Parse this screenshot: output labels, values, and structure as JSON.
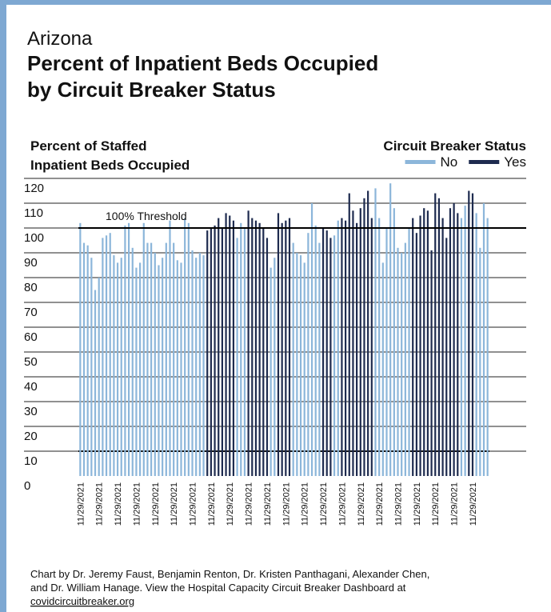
{
  "chart_data": {
    "type": "bar",
    "state": "Arizona",
    "title": [
      "Percent of Inpatient Beds Occupied",
      "by Circuit Breaker Status"
    ],
    "y_label": [
      "Percent of Staffed",
      "Inpatient Beds Occupied"
    ],
    "legend_title": "Circuit Breaker Status",
    "threshold": 100,
    "threshold_label": "100% Threshold",
    "ylim": [
      0,
      120
    ],
    "yticks": [
      0,
      10,
      20,
      30,
      40,
      50,
      60,
      70,
      80,
      90,
      100,
      110,
      120
    ],
    "grid": true,
    "categories": [
      "11/29/2021",
      null,
      null,
      null,
      null,
      "11/29/2021",
      null,
      null,
      null,
      null,
      "11/29/2021",
      null,
      null,
      null,
      null,
      "11/29/2021",
      null,
      null,
      null,
      null,
      "11/29/2021",
      null,
      null,
      null,
      null,
      "11/29/2021",
      null,
      null,
      null,
      null,
      "11/29/2021",
      null,
      null,
      null,
      null,
      "11/29/2021",
      null,
      null,
      null,
      null,
      "11/29/2021",
      null,
      null,
      null,
      null,
      "11/29/2021",
      null,
      null,
      null,
      null,
      "11/29/2021",
      null,
      null,
      null,
      null,
      "11/29/2021",
      null,
      null,
      null,
      null,
      "11/29/2021",
      null,
      null,
      null,
      null,
      "11/29/2021",
      null,
      null,
      null,
      null,
      "11/29/2021",
      null,
      null,
      null,
      null,
      "11/29/2021",
      null,
      null,
      null,
      null,
      "11/29/2021",
      null,
      null,
      null,
      null,
      "11/29/2021",
      null,
      null,
      null,
      null,
      "11/29/2021",
      null,
      null,
      null,
      null,
      "11/29/2021",
      null,
      null,
      null,
      null,
      "11/29/2021",
      null,
      null,
      null,
      null,
      "11/29/2021",
      null,
      null,
      null,
      null
    ],
    "series": [
      {
        "name": "No",
        "color": "#8cb6da",
        "values": [
          102,
          94,
          93,
          88,
          75,
          80,
          96,
          97,
          98,
          89,
          86,
          88,
          101,
          102,
          92,
          84,
          86,
          102,
          94,
          94,
          90,
          85,
          88,
          94,
          103,
          94,
          87,
          86,
          104,
          102,
          91,
          88,
          90,
          89,
          null,
          null,
          null,
          null,
          null,
          null,
          null,
          null,
          96,
          102,
          100,
          null,
          null,
          null,
          null,
          null,
          null,
          84,
          88,
          null,
          null,
          null,
          null,
          94,
          90,
          89,
          86,
          98,
          110,
          101,
          94,
          null,
          null,
          null,
          97,
          103,
          null,
          null,
          null,
          null,
          null,
          null,
          null,
          null,
          null,
          116,
          104,
          86,
          100,
          118,
          108,
          92,
          90,
          94,
          100,
          null,
          null,
          null,
          null,
          null,
          null,
          null,
          null,
          null,
          null,
          null,
          null,
          null,
          104,
          109,
          null,
          null,
          106,
          92,
          110,
          104
        ]
      },
      {
        "name": "Yes",
        "color": "#1e2b4f",
        "values": [
          null,
          null,
          null,
          null,
          null,
          null,
          null,
          null,
          null,
          null,
          null,
          null,
          null,
          null,
          null,
          null,
          null,
          null,
          null,
          null,
          null,
          null,
          null,
          null,
          null,
          null,
          null,
          null,
          null,
          null,
          null,
          null,
          null,
          null,
          99,
          100,
          101,
          104,
          100,
          106,
          105,
          103,
          null,
          null,
          null,
          107,
          104,
          103,
          102,
          100,
          96,
          null,
          null,
          106,
          102,
          103,
          104,
          null,
          null,
          null,
          null,
          null,
          null,
          null,
          null,
          100,
          99,
          96,
          null,
          null,
          104,
          103,
          114,
          107,
          102,
          108,
          112,
          115,
          104,
          null,
          null,
          null,
          null,
          null,
          null,
          null,
          null,
          null,
          null,
          104,
          98,
          105,
          108,
          107,
          91,
          114,
          112,
          104,
          96,
          108,
          110,
          106,
          null,
          null,
          115,
          114,
          null,
          null,
          null,
          null
        ]
      }
    ],
    "footer": [
      "Chart by Dr. Jeremy Faust, Benjamin Renton, Dr. Kristen Panthagani, Alexander Chen,",
      "and Dr. William Hanage. View the Hospital Capacity Circuit Breaker Dashboard at",
      "covidcircuitbreaker.org"
    ]
  }
}
